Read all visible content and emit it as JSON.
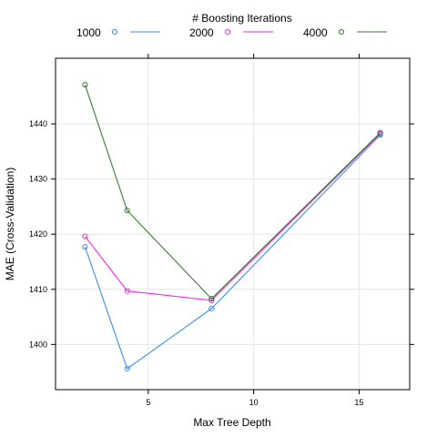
{
  "chart_data": {
    "type": "line",
    "title": "",
    "xlabel": "Max Tree Depth",
    "ylabel": "MAE (Cross-Validation)",
    "x": [
      2,
      4,
      8,
      16
    ],
    "xlim": [
      0.6,
      17.4
    ],
    "ylim": [
      1391.8,
      1451.9
    ],
    "xticks": [
      5,
      10,
      15
    ],
    "yticks": [
      1400,
      1410,
      1420,
      1430,
      1440
    ],
    "grid": true,
    "legend": {
      "title": "# Boosting Iterations",
      "position": "top"
    },
    "series": [
      {
        "name": "1000",
        "color": "#3d8ef0",
        "values": [
          1417.7,
          1395.6,
          1406.5,
          1438.0
        ]
      },
      {
        "name": "2000",
        "color": "#ee2ce7",
        "values": [
          1419.6,
          1409.7,
          1408.0,
          1438.2
        ]
      },
      {
        "name": "4000",
        "color": "#3a7d35",
        "values": [
          1447.1,
          1424.3,
          1408.3,
          1438.4
        ]
      }
    ]
  }
}
